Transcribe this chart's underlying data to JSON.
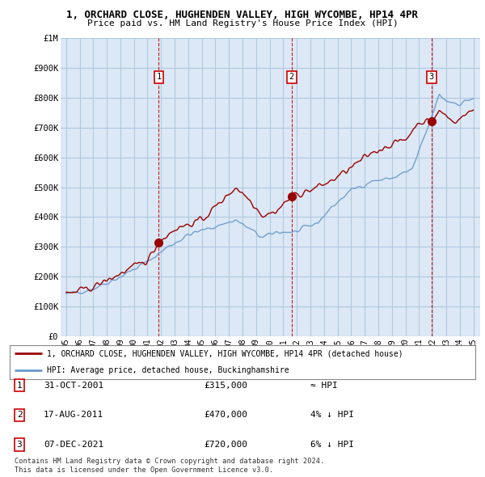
{
  "title": "1, ORCHARD CLOSE, HUGHENDEN VALLEY, HIGH WYCOMBE, HP14 4PR",
  "subtitle": "Price paid vs. HM Land Registry's House Price Index (HPI)",
  "ylim": [
    0,
    1000000
  ],
  "yticks": [
    0,
    100000,
    200000,
    300000,
    400000,
    500000,
    600000,
    700000,
    800000,
    900000,
    1000000
  ],
  "ytick_labels": [
    "£0",
    "£100K",
    "£200K",
    "£300K",
    "£400K",
    "£500K",
    "£600K",
    "£700K",
    "£800K",
    "£900K",
    "£1M"
  ],
  "bg_color": "#dce8f5",
  "grid_color": "#b0c8e0",
  "sale_color": "#990000",
  "hpi_color": "#6699cc",
  "dashed_color": "#cc0000",
  "transactions": [
    {
      "label": "1",
      "date": "31-OCT-2001",
      "year": 2001.83,
      "price": 315000,
      "hpi_note": "≈ HPI"
    },
    {
      "label": "2",
      "date": "17-AUG-2011",
      "year": 2011.62,
      "price": 470000,
      "hpi_note": "4% ↓ HPI"
    },
    {
      "label": "3",
      "date": "07-DEC-2021",
      "year": 2021.92,
      "price": 720000,
      "hpi_note": "6% ↓ HPI"
    }
  ],
  "xticks": [
    1995,
    1996,
    1997,
    1998,
    1999,
    2000,
    2001,
    2002,
    2003,
    2004,
    2005,
    2006,
    2007,
    2008,
    2009,
    2010,
    2011,
    2012,
    2013,
    2014,
    2015,
    2016,
    2017,
    2018,
    2019,
    2020,
    2021,
    2022,
    2023,
    2024,
    2025
  ],
  "xlim": [
    1994.6,
    2025.5
  ],
  "legend_sale": "1, ORCHARD CLOSE, HUGHENDEN VALLEY, HIGH WYCOMBE, HP14 4PR (detached house)",
  "legend_hpi": "HPI: Average price, detached house, Buckinghamshire",
  "footer1": "Contains HM Land Registry data © Crown copyright and database right 2024.",
  "footer2": "This data is licensed under the Open Government Licence v3.0."
}
